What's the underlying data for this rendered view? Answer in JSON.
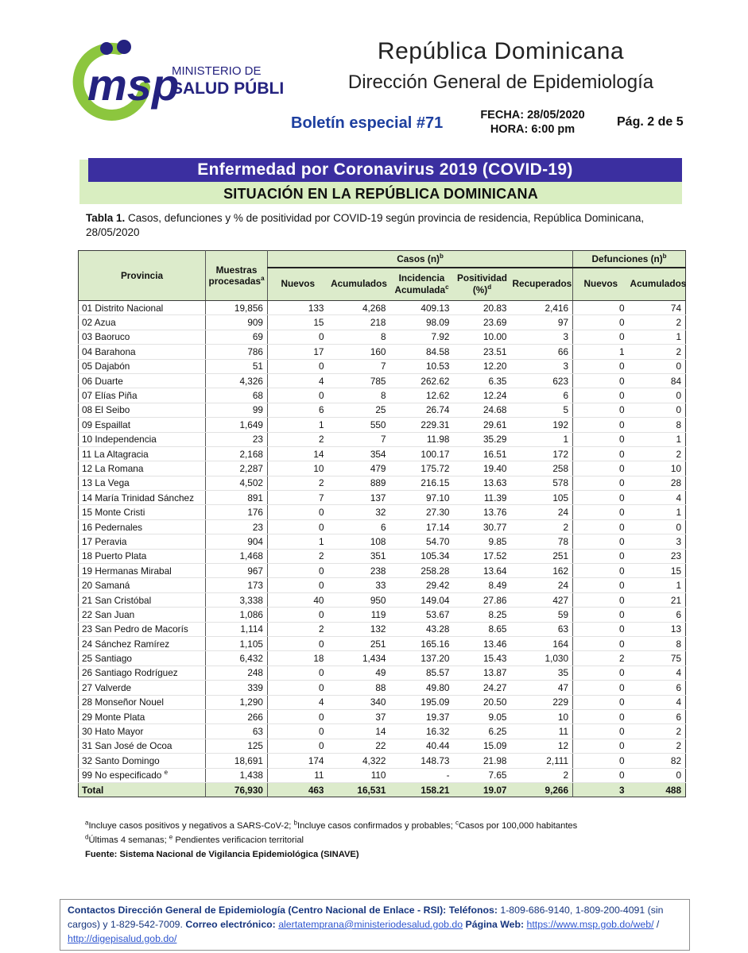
{
  "header": {
    "logo": {
      "msp_text": "msp",
      "ministry_line1": "MINISTERIO DE",
      "ministry_line2": "SALUD PÚBLICA",
      "green": "#8cc63e",
      "blue": "#24227f"
    },
    "title1": "República Dominicana",
    "title2": "Dirección General de Epidemiología",
    "bulletin": "Boletín especial #71",
    "fecha": "FECHA: 28/05/2020",
    "hora": "HORA: 6:00 pm",
    "page": "Pág. 2 de 5"
  },
  "banner": {
    "title": "Enfermedad por Coronavirus 2019 (COVID-19)",
    "subtitle": "SITUACIÓN EN LA REPÚBLICA DOMINICANA",
    "title_bg": "#3b2fa0",
    "subtitle_bg": "#d9eec1"
  },
  "caption": {
    "label": "Tabla 1.",
    "text": " Casos, defunciones y % de positividad por COVID-19 según provincia de residencia, República Dominicana, 28/05/2020"
  },
  "table": {
    "headers": {
      "provincia": "Provincia",
      "muestras_1": "Muestras",
      "muestras_2": "procesadas",
      "muestras_sup": "a",
      "casos_group": "Casos (n)",
      "casos_sup": "b",
      "defunciones_group": "Defunciones (n)",
      "defunciones_sup": "b",
      "nuevos": "Nuevos",
      "acumulados": "Acumulados",
      "incidencia_1": "Incidencia",
      "incidencia_2": "Acumulada",
      "incidencia_sup": "c",
      "positividad_1": "Positividad",
      "positividad_2": "(%)",
      "positividad_sup": "d",
      "recuperados": "Recuperados",
      "def_nuevos": "Nuevos",
      "def_acumulados": "Acumulados"
    },
    "rows": [
      [
        "01 Distrito Nacional",
        "19,856",
        "133",
        "4,268",
        "409.13",
        "20.83",
        "2,416",
        "0",
        "74"
      ],
      [
        "02 Azua",
        "909",
        "15",
        "218",
        "98.09",
        "23.69",
        "97",
        "0",
        "2"
      ],
      [
        "03 Baoruco",
        "69",
        "0",
        "8",
        "7.92",
        "10.00",
        "3",
        "0",
        "1"
      ],
      [
        "04 Barahona",
        "786",
        "17",
        "160",
        "84.58",
        "23.51",
        "66",
        "1",
        "2"
      ],
      [
        "05 Dajabón",
        "51",
        "0",
        "7",
        "10.53",
        "12.20",
        "3",
        "0",
        "0"
      ],
      [
        "06 Duarte",
        "4,326",
        "4",
        "785",
        "262.62",
        "6.35",
        "623",
        "0",
        "84"
      ],
      [
        "07 Elías Piña",
        "68",
        "0",
        "8",
        "12.62",
        "12.24",
        "6",
        "0",
        "0"
      ],
      [
        "08 El Seibo",
        "99",
        "6",
        "25",
        "26.74",
        "24.68",
        "5",
        "0",
        "0"
      ],
      [
        "09 Espaillat",
        "1,649",
        "1",
        "550",
        "229.31",
        "29.61",
        "192",
        "0",
        "8"
      ],
      [
        "10 Independencia",
        "23",
        "2",
        "7",
        "11.98",
        "35.29",
        "1",
        "0",
        "1"
      ],
      [
        "11 La Altagracia",
        "2,168",
        "14",
        "354",
        "100.17",
        "16.51",
        "172",
        "0",
        "2"
      ],
      [
        "12 La Romana",
        "2,287",
        "10",
        "479",
        "175.72",
        "19.40",
        "258",
        "0",
        "10"
      ],
      [
        "13 La Vega",
        "4,502",
        "2",
        "889",
        "216.15",
        "13.63",
        "578",
        "0",
        "28"
      ],
      [
        "14 María Trinidad Sánchez",
        "891",
        "7",
        "137",
        "97.10",
        "11.39",
        "105",
        "0",
        "4"
      ],
      [
        "15 Monte Cristi",
        "176",
        "0",
        "32",
        "27.30",
        "13.76",
        "24",
        "0",
        "1"
      ],
      [
        "16 Pedernales",
        "23",
        "0",
        "6",
        "17.14",
        "30.77",
        "2",
        "0",
        "0"
      ],
      [
        "17 Peravia",
        "904",
        "1",
        "108",
        "54.70",
        "9.85",
        "78",
        "0",
        "3"
      ],
      [
        "18 Puerto Plata",
        "1,468",
        "2",
        "351",
        "105.34",
        "17.52",
        "251",
        "0",
        "23"
      ],
      [
        "19 Hermanas Mirabal",
        "967",
        "0",
        "238",
        "258.28",
        "13.64",
        "162",
        "0",
        "15"
      ],
      [
        "20 Samaná",
        "173",
        "0",
        "33",
        "29.42",
        "8.49",
        "24",
        "0",
        "1"
      ],
      [
        "21 San Cristóbal",
        "3,338",
        "40",
        "950",
        "149.04",
        "27.86",
        "427",
        "0",
        "21"
      ],
      [
        "22 San Juan",
        "1,086",
        "0",
        "119",
        "53.67",
        "8.25",
        "59",
        "0",
        "6"
      ],
      [
        "23 San Pedro de Macorís",
        "1,114",
        "2",
        "132",
        "43.28",
        "8.65",
        "63",
        "0",
        "13"
      ],
      [
        "24 Sánchez Ramírez",
        "1,105",
        "0",
        "251",
        "165.16",
        "13.46",
        "164",
        "0",
        "8"
      ],
      [
        "25 Santiago",
        "6,432",
        "18",
        "1,434",
        "137.20",
        "15.43",
        "1,030",
        "2",
        "75"
      ],
      [
        "26 Santiago Rodríguez",
        "248",
        "0",
        "49",
        "85.57",
        "13.87",
        "35",
        "0",
        "4"
      ],
      [
        "27 Valverde",
        "339",
        "0",
        "88",
        "49.80",
        "24.27",
        "47",
        "0",
        "6"
      ],
      [
        "28 Monseñor Nouel",
        "1,290",
        "4",
        "340",
        "195.09",
        "20.50",
        "229",
        "0",
        "4"
      ],
      [
        "29 Monte Plata",
        "266",
        "0",
        "37",
        "19.37",
        "9.05",
        "10",
        "0",
        "6"
      ],
      [
        "30 Hato Mayor",
        "63",
        "0",
        "14",
        "16.32",
        "6.25",
        "11",
        "0",
        "2"
      ],
      [
        "31 San José de Ocoa",
        "125",
        "0",
        "22",
        "40.44",
        "15.09",
        "12",
        "0",
        "2"
      ],
      [
        "32 Santo Domingo",
        "18,691",
        "174",
        "4,322",
        "148.73",
        "21.98",
        "2,111",
        "0",
        "82"
      ],
      [
        "99 No especificado ^e",
        "1,438",
        "11",
        "110",
        "-",
        "7.65",
        "2",
        "0",
        "0"
      ]
    ],
    "total_row": [
      "Total",
      "76,930",
      "463",
      "16,531",
      "158.21",
      "19.07",
      "9,266",
      "3",
      "488"
    ]
  },
  "footnotes": {
    "lines": [
      {
        "bold": false,
        "segments": [
          {
            "sup": "a",
            "text": "Incluye casos positivos y negativos a SARS-CoV-2; "
          },
          {
            "sup": "b",
            "text": "Incluye casos confirmados y probables; "
          },
          {
            "sup": "c",
            "text": "Casos por 100,000 habitantes"
          }
        ]
      },
      {
        "bold": false,
        "segments": [
          {
            "sup": "d",
            "text": "Últimas 4 semanas; "
          },
          {
            "sup": "e",
            "text": " Pendientes verificacion territorial"
          }
        ]
      },
      {
        "bold": true,
        "segments": [
          {
            "text": "Fuente: Sistema Nacional de Vigilancia Epidemiológica (SINAVE)"
          }
        ]
      }
    ]
  },
  "contact": {
    "segments": [
      {
        "text": "Contactos Dirección General de Epidemiología (Centro Nacional de Enlace - RSI): ",
        "bold": true
      },
      {
        "text": "Teléfonos:",
        "bold": true
      },
      {
        "text": " 1-809-686-9140, 1-809-200-4091 (sin cargos) y 1-829-542-7009.  ",
        "bold": false
      },
      {
        "text": "Correo electrónico:",
        "bold": true
      },
      {
        "text": " ",
        "bold": false
      },
      {
        "text": "alertatemprana@ministeriodesalud.gob.do",
        "link": true
      },
      {
        "text": " ",
        "bold": false
      },
      {
        "text": "Página Web:",
        "bold": true
      },
      {
        "text": " ",
        "bold": false
      },
      {
        "text": "https://www.msp.gob.do/web/",
        "link": true
      },
      {
        "text": " / ",
        "bold": false
      },
      {
        "text": "http://digepisalud.gob.do/",
        "link": true
      }
    ]
  }
}
